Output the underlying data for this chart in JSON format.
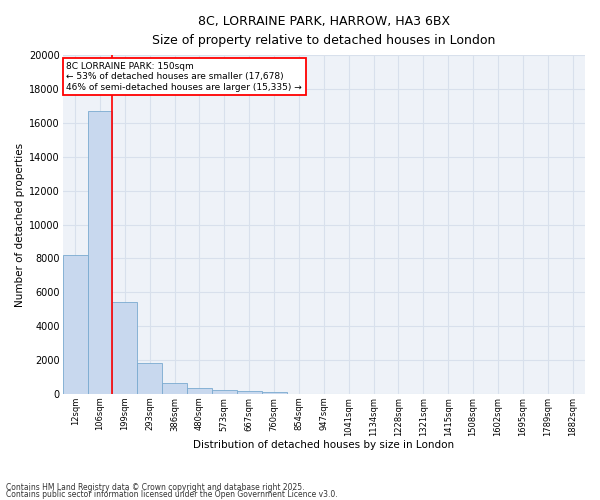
{
  "title_line1": "8C, LORRAINE PARK, HARROW, HA3 6BX",
  "title_line2": "Size of property relative to detached houses in London",
  "xlabel": "Distribution of detached houses by size in London",
  "ylabel": "Number of detached properties",
  "bar_color": "#c8d8ee",
  "bar_edge_color": "#7aaad0",
  "categories": [
    "12sqm",
    "106sqm",
    "199sqm",
    "293sqm",
    "386sqm",
    "480sqm",
    "573sqm",
    "667sqm",
    "760sqm",
    "854sqm",
    "947sqm",
    "1041sqm",
    "1134sqm",
    "1228sqm",
    "1321sqm",
    "1415sqm",
    "1508sqm",
    "1602sqm",
    "1695sqm",
    "1789sqm",
    "1882sqm"
  ],
  "values": [
    8200,
    16700,
    5400,
    1850,
    650,
    330,
    230,
    175,
    120,
    0,
    0,
    0,
    0,
    0,
    0,
    0,
    0,
    0,
    0,
    0,
    0
  ],
  "ylim": [
    0,
    20000
  ],
  "yticks": [
    0,
    2000,
    4000,
    6000,
    8000,
    10000,
    12000,
    14000,
    16000,
    18000,
    20000
  ],
  "annotation_text": "8C LORRAINE PARK: 150sqm\n← 53% of detached houses are smaller (17,678)\n46% of semi-detached houses are larger (15,335) →",
  "vline_x_index": 1.5,
  "background_color": "#eef2f8",
  "grid_color": "#d8e0ec",
  "footer_line1": "Contains HM Land Registry data © Crown copyright and database right 2025.",
  "footer_line2": "Contains public sector information licensed under the Open Government Licence v3.0."
}
